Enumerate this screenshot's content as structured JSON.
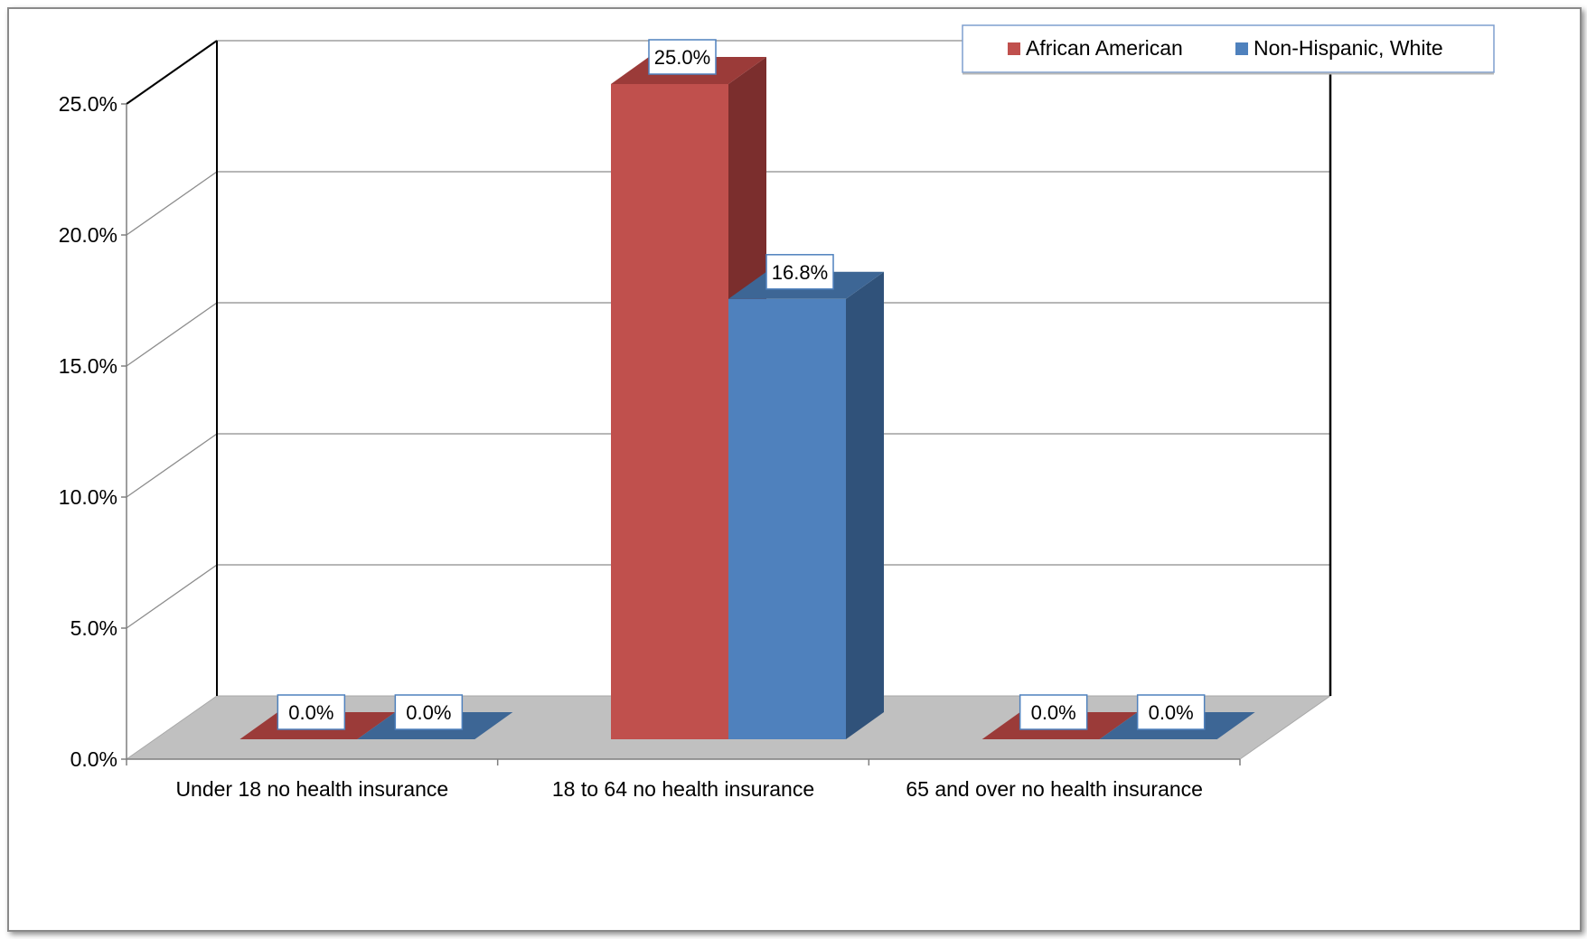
{
  "chart_data": {
    "type": "bar",
    "title": "",
    "xlabel": "",
    "ylabel": "",
    "categories": [
      "Under 18  no health insurance",
      "18 to 64 no health insurance",
      "65 and over no health insurance"
    ],
    "series": [
      {
        "name": "African American",
        "values": [
          0.0,
          25.0,
          0.0
        ],
        "color": "#C0504D",
        "side_color": "#7B2E2D",
        "top_color": "#9B3B39"
      },
      {
        "name": "Non-Hispanic, White",
        "values": [
          0.0,
          16.8,
          0.0
        ],
        "color": "#4F81BD",
        "side_color": "#30527A",
        "top_color": "#3D6695"
      }
    ],
    "data_labels": [
      [
        "0.0%",
        "25.0%",
        "0.0%"
      ],
      [
        "0.0%",
        "16.8%",
        "0.0%"
      ]
    ],
    "yticks": [
      "0.0%",
      "5.0%",
      "10.0%",
      "15.0%",
      "20.0%",
      "25.0%"
    ],
    "ylim": [
      0,
      25
    ],
    "grid": true,
    "legend_position": "top-right",
    "style": "3d-clustered-column"
  }
}
